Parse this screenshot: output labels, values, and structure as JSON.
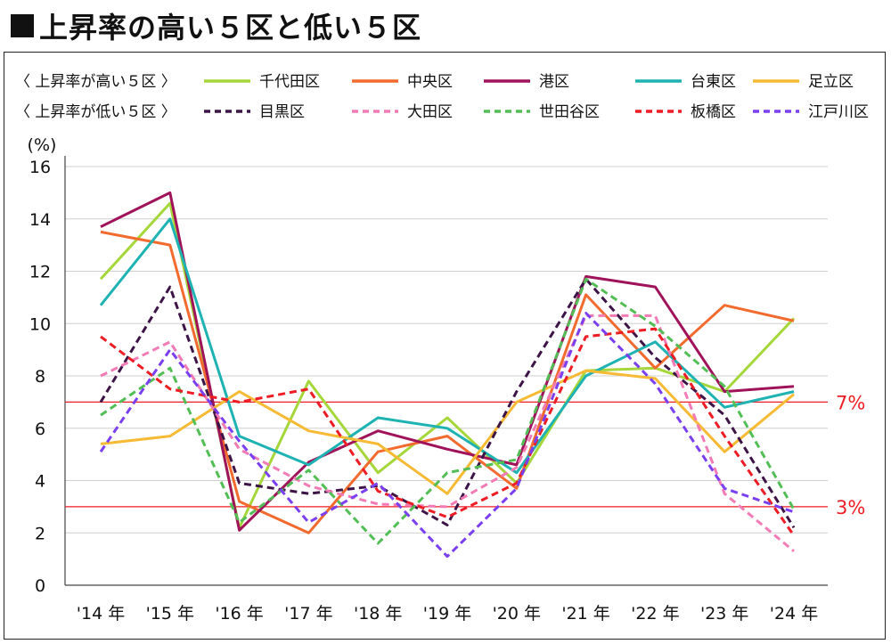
{
  "title": "上昇率の高い５区と低い５区",
  "chart_data": {
    "type": "line",
    "ylabel": "(%)",
    "ylim": [
      0,
      16
    ],
    "yticks": [
      0,
      2,
      4,
      6,
      8,
      10,
      12,
      14,
      16
    ],
    "categories": [
      "'14 年",
      "'15 年",
      "'16 年",
      "'17 年",
      "'18 年",
      "'19 年",
      "'20 年",
      "'21 年",
      "'22 年",
      "'23 年",
      "'24 年"
    ],
    "legend_groups": [
      {
        "label": "〈 上昇率が高い５区 〉",
        "style": "solid"
      },
      {
        "label": "〈 上昇率が低い５区 〉",
        "style": "dashed"
      }
    ],
    "series": [
      {
        "name": "千代田区",
        "color": "#a5d63a",
        "style": "solid",
        "group": 0,
        "values": [
          11.7,
          14.6,
          2.2,
          7.8,
          4.3,
          6.4,
          3.9,
          8.2,
          8.3,
          7.4,
          10.2
        ]
      },
      {
        "name": "中央区",
        "color": "#f26a2e",
        "style": "solid",
        "group": 0,
        "values": [
          13.5,
          13.0,
          3.2,
          2.0,
          5.1,
          5.7,
          3.7,
          11.1,
          8.3,
          10.7,
          10.1
        ]
      },
      {
        "name": "港区",
        "color": "#a0135a",
        "style": "solid",
        "group": 0,
        "values": [
          13.7,
          15.0,
          2.1,
          4.7,
          5.9,
          5.2,
          4.6,
          11.8,
          11.4,
          7.4,
          7.6
        ]
      },
      {
        "name": "台東区",
        "color": "#1fb2b3",
        "style": "solid",
        "group": 0,
        "values": [
          10.7,
          14.0,
          5.7,
          4.6,
          6.4,
          6.0,
          4.3,
          8.0,
          9.3,
          6.8,
          7.4
        ]
      },
      {
        "name": "足立区",
        "color": "#f6ba34",
        "style": "solid",
        "group": 0,
        "values": [
          5.4,
          5.7,
          7.4,
          5.9,
          5.4,
          3.5,
          7.0,
          8.2,
          7.9,
          5.1,
          7.3
        ]
      },
      {
        "name": "目黒区",
        "color": "#3d1446",
        "style": "dashed",
        "group": 1,
        "values": [
          7.0,
          11.4,
          3.9,
          3.5,
          3.8,
          2.3,
          7.4,
          11.7,
          8.7,
          6.5,
          2.2
        ]
      },
      {
        "name": "大田区",
        "color": "#f27bb5",
        "style": "dashed",
        "group": 1,
        "values": [
          8.0,
          9.3,
          5.2,
          3.8,
          3.1,
          3.0,
          4.5,
          10.3,
          10.3,
          3.5,
          1.3
        ]
      },
      {
        "name": "世田谷区",
        "color": "#52be55",
        "style": "dashed",
        "group": 1,
        "values": [
          6.5,
          8.3,
          2.4,
          4.4,
          1.6,
          4.3,
          4.8,
          11.7,
          9.9,
          7.6,
          2.9
        ]
      },
      {
        "name": "板橋区",
        "color": "#ee1c25",
        "style": "dashed",
        "group": 1,
        "values": [
          9.5,
          7.5,
          7.0,
          7.5,
          3.6,
          2.6,
          3.9,
          9.5,
          9.8,
          5.7,
          1.9
        ]
      },
      {
        "name": "江戸川区",
        "color": "#7b3ff2",
        "style": "dashed",
        "group": 1,
        "values": [
          5.1,
          9.0,
          5.5,
          2.4,
          3.9,
          1.1,
          3.7,
          10.4,
          7.7,
          3.7,
          2.8
        ]
      }
    ],
    "reference_lines": [
      {
        "value": 7,
        "label": "7%",
        "color": "#ee1c25"
      },
      {
        "value": 3,
        "label": "3%",
        "color": "#ee1c25"
      }
    ],
    "grid": "horizontal"
  }
}
